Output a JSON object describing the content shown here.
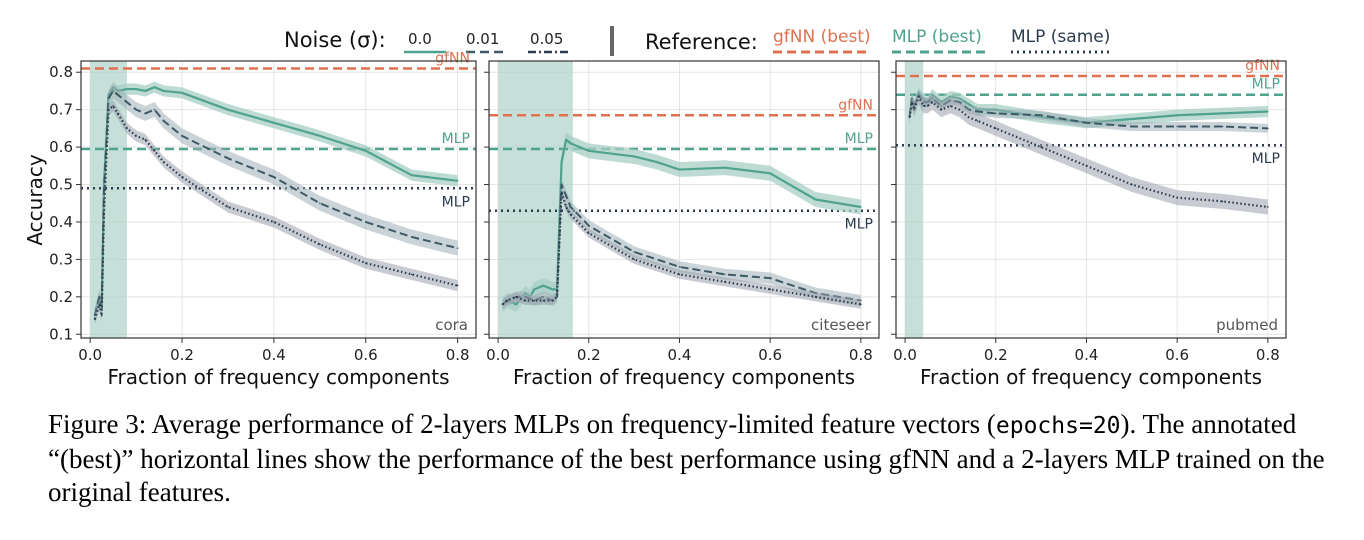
{
  "legend": {
    "noise_title": "Noise (σ):",
    "noise_levels": [
      "0.0",
      "0.01",
      "0.05"
    ],
    "reference_title": "Reference:",
    "references": [
      "gfNN (best)",
      "MLP (best)",
      "MLP (same)"
    ]
  },
  "colors": {
    "teal": "#4fa28d",
    "teal_band": "#a7cfc4",
    "slate": "#3f5a67",
    "navy": "#2c3b4e",
    "orange": "#e07150",
    "grid": "#e4e4e4",
    "axis": "#333333"
  },
  "caption": {
    "part1": "Figure 3: Average performance of 2-layers MLPs on frequency-limited feature vectors (",
    "code": "epochs=20",
    "part2": "). The annotated “(best)” horizontal lines show the performance of the best performance using gfNN and a 2-layers MLP trained on the original features."
  },
  "chart_data": [
    {
      "type": "line",
      "dataset": "cora",
      "xlabel": "Fraction of frequency components",
      "ylabel": "Accuracy",
      "xlim": [
        -0.02,
        0.84
      ],
      "ylim": [
        0.09,
        0.83
      ],
      "xticks": [
        "0.0",
        "0.2",
        "0.4",
        "0.6",
        "0.8"
      ],
      "yticks": [
        "0.1",
        "0.2",
        "0.3",
        "0.4",
        "0.5",
        "0.6",
        "0.7",
        "0.8"
      ],
      "highlight_span": [
        0.0,
        0.08
      ],
      "references": [
        {
          "name": "gfNN (best)",
          "label": "gfNN",
          "value": 0.81
        },
        {
          "name": "MLP (best)",
          "label": "MLP",
          "value": 0.595
        },
        {
          "name": "MLP (same)",
          "label": "MLP",
          "value": 0.49
        }
      ],
      "series": [
        {
          "name": "0.0",
          "x": [
            0.01,
            0.02,
            0.025,
            0.03,
            0.04,
            0.05,
            0.06,
            0.08,
            0.1,
            0.12,
            0.14,
            0.16,
            0.2,
            0.3,
            0.4,
            0.5,
            0.6,
            0.7,
            0.8
          ],
          "y": [
            0.15,
            0.2,
            0.17,
            0.5,
            0.74,
            0.76,
            0.75,
            0.755,
            0.755,
            0.75,
            0.76,
            0.75,
            0.745,
            0.7,
            0.665,
            0.63,
            0.59,
            0.525,
            0.51
          ],
          "band": 0.015
        },
        {
          "name": "0.01",
          "x": [
            0.01,
            0.02,
            0.025,
            0.03,
            0.04,
            0.05,
            0.06,
            0.08,
            0.1,
            0.12,
            0.14,
            0.16,
            0.2,
            0.3,
            0.4,
            0.5,
            0.6,
            0.7,
            0.8
          ],
          "y": [
            0.15,
            0.2,
            0.17,
            0.48,
            0.73,
            0.75,
            0.74,
            0.72,
            0.7,
            0.69,
            0.7,
            0.67,
            0.63,
            0.57,
            0.52,
            0.45,
            0.4,
            0.36,
            0.33
          ],
          "band": 0.02
        },
        {
          "name": "0.05",
          "x": [
            0.01,
            0.02,
            0.025,
            0.03,
            0.04,
            0.05,
            0.06,
            0.08,
            0.1,
            0.12,
            0.14,
            0.16,
            0.2,
            0.3,
            0.4,
            0.5,
            0.6,
            0.7,
            0.8
          ],
          "y": [
            0.14,
            0.18,
            0.15,
            0.42,
            0.7,
            0.71,
            0.69,
            0.65,
            0.63,
            0.62,
            0.59,
            0.56,
            0.52,
            0.44,
            0.4,
            0.34,
            0.29,
            0.26,
            0.23
          ],
          "band": 0.015
        }
      ]
    },
    {
      "type": "line",
      "dataset": "citeseer",
      "xlabel": "Fraction of frequency components",
      "ylabel": "",
      "xlim": [
        -0.02,
        0.84
      ],
      "ylim": [
        0.09,
        0.83
      ],
      "xticks": [
        "0.0",
        "0.2",
        "0.4",
        "0.6",
        "0.8"
      ],
      "yticks": [],
      "highlight_span": [
        0.0,
        0.165
      ],
      "references": [
        {
          "name": "gfNN (best)",
          "label": "gfNN",
          "value": 0.685
        },
        {
          "name": "MLP (best)",
          "label": "MLP",
          "value": 0.595
        },
        {
          "name": "MLP (same)",
          "label": "MLP",
          "value": 0.43
        }
      ],
      "series": [
        {
          "name": "0.0",
          "x": [
            0.01,
            0.02,
            0.04,
            0.06,
            0.07,
            0.08,
            0.1,
            0.12,
            0.13,
            0.14,
            0.15,
            0.16,
            0.2,
            0.3,
            0.35,
            0.4,
            0.5,
            0.6,
            0.7,
            0.8
          ],
          "y": [
            0.18,
            0.19,
            0.18,
            0.21,
            0.2,
            0.22,
            0.23,
            0.22,
            0.22,
            0.56,
            0.62,
            0.61,
            0.59,
            0.575,
            0.56,
            0.54,
            0.545,
            0.53,
            0.46,
            0.44
          ],
          "band": 0.02
        },
        {
          "name": "0.01",
          "x": [
            0.01,
            0.02,
            0.04,
            0.06,
            0.08,
            0.1,
            0.12,
            0.13,
            0.14,
            0.15,
            0.16,
            0.2,
            0.3,
            0.4,
            0.5,
            0.6,
            0.7,
            0.8
          ],
          "y": [
            0.18,
            0.19,
            0.2,
            0.2,
            0.19,
            0.2,
            0.19,
            0.2,
            0.5,
            0.47,
            0.44,
            0.39,
            0.32,
            0.28,
            0.26,
            0.25,
            0.21,
            0.19
          ],
          "band": 0.015
        },
        {
          "name": "0.05",
          "x": [
            0.01,
            0.02,
            0.04,
            0.06,
            0.08,
            0.1,
            0.12,
            0.13,
            0.14,
            0.15,
            0.16,
            0.2,
            0.3,
            0.4,
            0.5,
            0.6,
            0.7,
            0.8
          ],
          "y": [
            0.18,
            0.19,
            0.2,
            0.19,
            0.19,
            0.19,
            0.19,
            0.2,
            0.48,
            0.44,
            0.42,
            0.37,
            0.3,
            0.26,
            0.24,
            0.22,
            0.2,
            0.18
          ],
          "band": 0.012
        }
      ]
    },
    {
      "type": "line",
      "dataset": "pubmed",
      "xlabel": "Fraction of frequency components",
      "ylabel": "",
      "xlim": [
        -0.02,
        0.84
      ],
      "ylim": [
        0.09,
        0.83
      ],
      "xticks": [
        "0.0",
        "0.2",
        "0.4",
        "0.6",
        "0.8"
      ],
      "yticks": [],
      "highlight_span": [
        0.0,
        0.04
      ],
      "references": [
        {
          "name": "gfNN (best)",
          "label": "gfNN",
          "value": 0.79
        },
        {
          "name": "MLP (best)",
          "label": "MLP",
          "value": 0.74
        },
        {
          "name": "MLP (same)",
          "label": "MLP",
          "value": 0.605
        }
      ],
      "series": [
        {
          "name": "0.0",
          "x": [
            0.01,
            0.015,
            0.02,
            0.03,
            0.04,
            0.05,
            0.06,
            0.08,
            0.1,
            0.12,
            0.14,
            0.16,
            0.2,
            0.3,
            0.4,
            0.5,
            0.6,
            0.7,
            0.8
          ],
          "y": [
            0.68,
            0.73,
            0.71,
            0.745,
            0.73,
            0.72,
            0.74,
            0.72,
            0.735,
            0.73,
            0.715,
            0.7,
            0.7,
            0.68,
            0.665,
            0.675,
            0.685,
            0.69,
            0.695
          ],
          "band": 0.015
        },
        {
          "name": "0.01",
          "x": [
            0.01,
            0.015,
            0.02,
            0.03,
            0.04,
            0.05,
            0.06,
            0.08,
            0.1,
            0.12,
            0.14,
            0.16,
            0.2,
            0.3,
            0.4,
            0.5,
            0.6,
            0.7,
            0.8
          ],
          "y": [
            0.68,
            0.73,
            0.71,
            0.74,
            0.72,
            0.72,
            0.73,
            0.71,
            0.725,
            0.72,
            0.7,
            0.695,
            0.69,
            0.685,
            0.665,
            0.655,
            0.655,
            0.655,
            0.65
          ],
          "band": 0.012
        },
        {
          "name": "0.05",
          "x": [
            0.01,
            0.015,
            0.02,
            0.03,
            0.04,
            0.05,
            0.06,
            0.08,
            0.1,
            0.12,
            0.14,
            0.16,
            0.2,
            0.3,
            0.4,
            0.5,
            0.6,
            0.7,
            0.8
          ],
          "y": [
            0.68,
            0.72,
            0.7,
            0.735,
            0.71,
            0.71,
            0.72,
            0.7,
            0.71,
            0.7,
            0.68,
            0.67,
            0.65,
            0.6,
            0.55,
            0.5,
            0.465,
            0.455,
            0.44
          ],
          "band": 0.02
        }
      ]
    }
  ]
}
